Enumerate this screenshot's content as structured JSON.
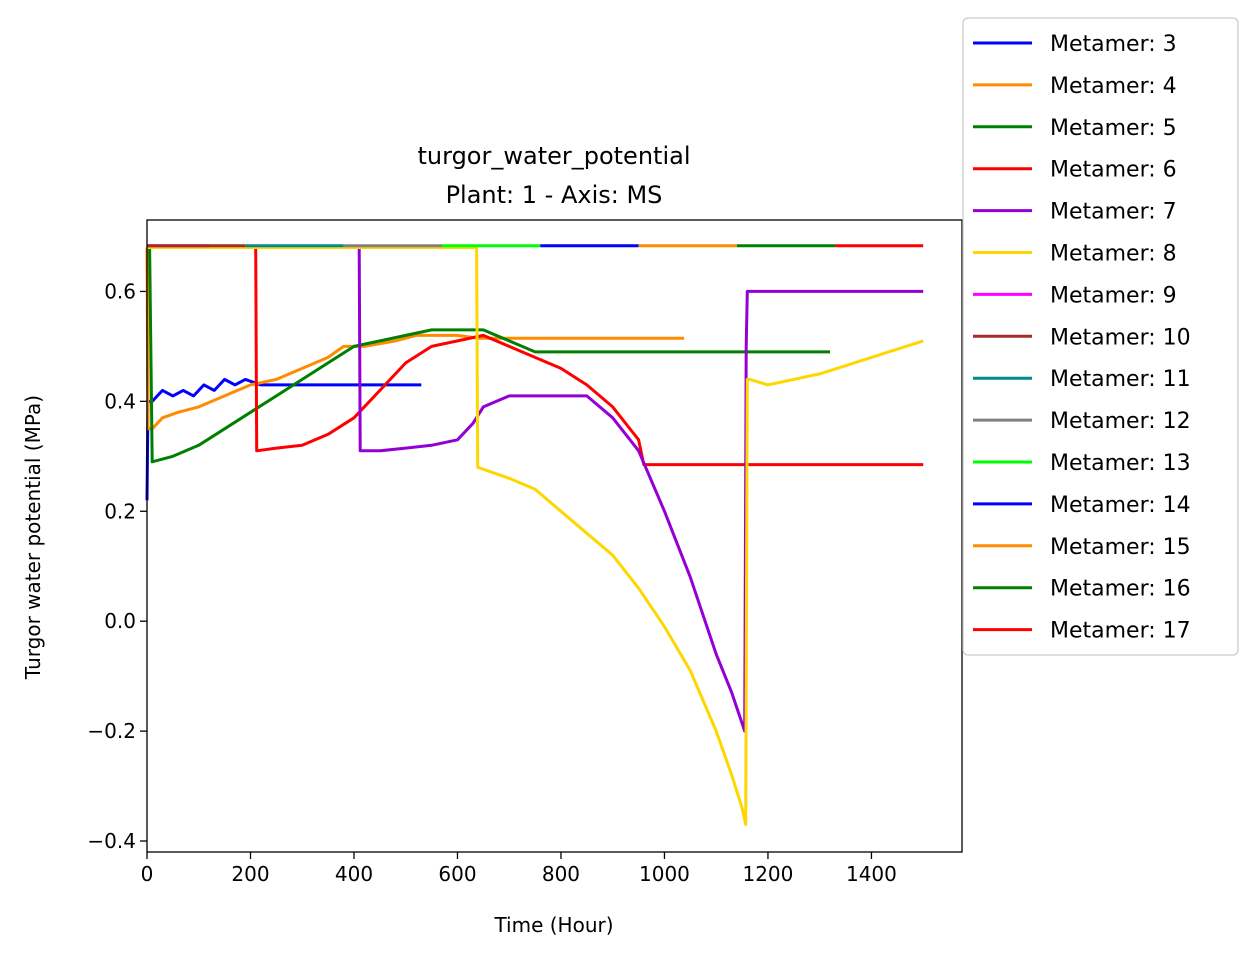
{
  "chart_data": {
    "type": "line",
    "title": "turgor_water_potential",
    "subtitle": "Plant: 1 - Axis: MS",
    "xlabel": "Time (Hour)",
    "ylabel": "Turgor water potential (MPa)",
    "xlim": [
      0,
      1575
    ],
    "ylim": [
      -0.42,
      0.73
    ],
    "xticks": [
      0,
      200,
      400,
      600,
      800,
      1000,
      1200,
      1400
    ],
    "xtick_labels": [
      "0",
      "200",
      "400",
      "600",
      "800",
      "1000",
      "1200",
      "1400"
    ],
    "yticks": [
      -0.4,
      -0.2,
      0.0,
      0.2,
      0.4,
      0.6
    ],
    "ytick_labels": [
      "−0.4",
      "−0.2",
      "0.0",
      "0.2",
      "0.4",
      "0.6"
    ],
    "grid": false,
    "legend_position": "outside-right",
    "series": [
      {
        "name": "Metamer: 3",
        "color": "#0000ff",
        "x": [
          0,
          2,
          10,
          20,
          30,
          50,
          70,
          90,
          110,
          130,
          150,
          170,
          190,
          220,
          260,
          300,
          350,
          400,
          450,
          500,
          530
        ],
        "y": [
          0.22,
          0.4,
          0.4,
          0.41,
          0.42,
          0.41,
          0.42,
          0.41,
          0.43,
          0.42,
          0.44,
          0.43,
          0.44,
          0.43,
          0.43,
          0.43,
          0.43,
          0.43,
          0.43,
          0.43,
          0.43
        ]
      },
      {
        "name": "Metamer: 4",
        "color": "#ff8c00",
        "x": [
          0,
          2,
          10,
          30,
          60,
          100,
          150,
          200,
          250,
          300,
          350,
          380,
          420,
          480,
          520,
          600,
          640,
          700,
          800,
          900,
          1000,
          1038
        ],
        "y": [
          0.68,
          0.35,
          0.35,
          0.37,
          0.38,
          0.39,
          0.41,
          0.43,
          0.44,
          0.46,
          0.48,
          0.5,
          0.5,
          0.51,
          0.52,
          0.52,
          0.515,
          0.515,
          0.515,
          0.515,
          0.515,
          0.515
        ]
      },
      {
        "name": "Metamer: 5",
        "color": "#008000",
        "x": [
          0,
          5,
          10,
          50,
          100,
          150,
          200,
          250,
          300,
          350,
          400,
          450,
          500,
          550,
          600,
          650,
          700,
          750,
          800,
          900,
          1000,
          1100,
          1200,
          1320
        ],
        "y": [
          0.68,
          0.68,
          0.29,
          0.3,
          0.32,
          0.35,
          0.38,
          0.41,
          0.44,
          0.47,
          0.5,
          0.51,
          0.52,
          0.53,
          0.53,
          0.53,
          0.51,
          0.49,
          0.49,
          0.49,
          0.49,
          0.49,
          0.49,
          0.49
        ]
      },
      {
        "name": "Metamer: 6",
        "color": "#ff0000",
        "x": [
          0,
          210,
          212,
          250,
          300,
          350,
          400,
          450,
          500,
          550,
          600,
          650,
          700,
          750,
          800,
          850,
          900,
          950,
          960,
          1000,
          1100,
          1200,
          1300,
          1400,
          1500
        ],
        "y": [
          0.68,
          0.68,
          0.31,
          0.315,
          0.32,
          0.34,
          0.37,
          0.42,
          0.47,
          0.5,
          0.51,
          0.52,
          0.5,
          0.48,
          0.46,
          0.43,
          0.39,
          0.33,
          0.285,
          0.285,
          0.285,
          0.285,
          0.285,
          0.285,
          0.285
        ]
      },
      {
        "name": "Metamer: 7",
        "color": "#9400d3",
        "x": [
          0,
          410,
          412,
          450,
          500,
          550,
          600,
          630,
          650,
          700,
          750,
          800,
          850,
          900,
          950,
          1000,
          1050,
          1100,
          1130,
          1155,
          1158,
          1160,
          1165,
          1200,
          1300,
          1400,
          1500
        ],
        "y": [
          0.68,
          0.68,
          0.31,
          0.31,
          0.315,
          0.32,
          0.33,
          0.36,
          0.39,
          0.41,
          0.41,
          0.41,
          0.41,
          0.37,
          0.31,
          0.2,
          0.08,
          -0.06,
          -0.13,
          -0.2,
          0.5,
          0.6,
          0.6,
          0.6,
          0.6,
          0.6,
          0.6
        ]
      },
      {
        "name": "Metamer: 8",
        "color": "#ffd700",
        "x": [
          0,
          637,
          639,
          700,
          750,
          800,
          850,
          900,
          950,
          1000,
          1050,
          1100,
          1130,
          1150,
          1157,
          1160,
          1165,
          1200,
          1300,
          1400,
          1500
        ],
        "y": [
          0.68,
          0.68,
          0.28,
          0.26,
          0.24,
          0.2,
          0.16,
          0.12,
          0.06,
          -0.01,
          -0.09,
          -0.2,
          -0.28,
          -0.34,
          -0.37,
          0.44,
          0.44,
          0.43,
          0.45,
          0.48,
          0.51
        ]
      },
      {
        "name": "Metamer: 9",
        "color": "#ff00ff",
        "x": [
          0,
          120
        ],
        "y": [
          0.683,
          0.683
        ]
      },
      {
        "name": "Metamer: 10",
        "color": "#a52a2a",
        "x": [
          0,
          190
        ],
        "y": [
          0.683,
          0.683
        ]
      },
      {
        "name": "Metamer: 11",
        "color": "#008b8b",
        "x": [
          190,
          380
        ],
        "y": [
          0.683,
          0.683
        ]
      },
      {
        "name": "Metamer: 12",
        "color": "#808080",
        "x": [
          380,
          570
        ],
        "y": [
          0.683,
          0.683
        ]
      },
      {
        "name": "Metamer: 13",
        "color": "#00ff00",
        "x": [
          570,
          760
        ],
        "y": [
          0.683,
          0.683
        ]
      },
      {
        "name": "Metamer: 14",
        "color": "#0000ff",
        "x": [
          760,
          950
        ],
        "y": [
          0.683,
          0.683
        ]
      },
      {
        "name": "Metamer: 15",
        "color": "#ff8c00",
        "x": [
          950,
          1140
        ],
        "y": [
          0.683,
          0.683
        ]
      },
      {
        "name": "Metamer: 16",
        "color": "#008000",
        "x": [
          1140,
          1330
        ],
        "y": [
          0.683,
          0.683
        ]
      },
      {
        "name": "Metamer: 17",
        "color": "#ff0000",
        "x": [
          1330,
          1500
        ],
        "y": [
          0.683,
          0.683
        ]
      }
    ]
  }
}
